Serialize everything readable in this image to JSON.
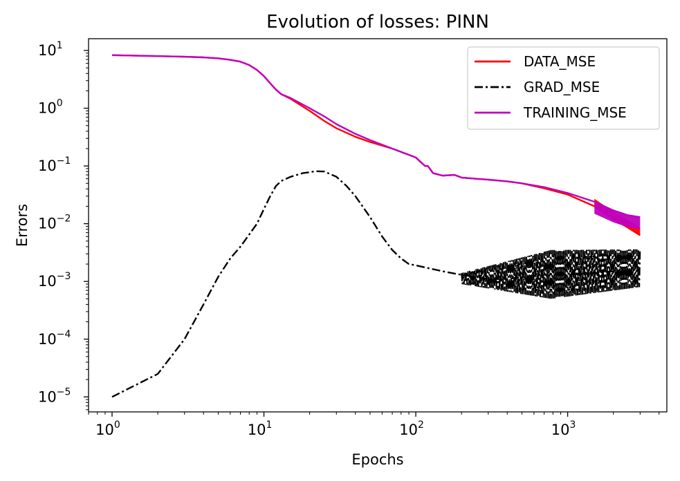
{
  "chart_data": {
    "type": "line",
    "title": "Evolution of losses: PINN",
    "xlabel": "Epochs",
    "ylabel": "Errors",
    "xscale": "log",
    "yscale": "log",
    "xlim": [
      0.7,
      4500
    ],
    "ylim": [
      5.5e-06,
      16
    ],
    "x_ticks": [
      {
        "value": 1,
        "base": "10",
        "exp": "0"
      },
      {
        "value": 10,
        "base": "10",
        "exp": "1"
      },
      {
        "value": 100,
        "base": "10",
        "exp": "2"
      },
      {
        "value": 1000,
        "base": "10",
        "exp": "3"
      }
    ],
    "y_ticks": [
      {
        "value": 10,
        "base": "10",
        "exp": "1"
      },
      {
        "value": 1,
        "base": "10",
        "exp": "0"
      },
      {
        "value": 0.1,
        "base": "10",
        "exp": "−1"
      },
      {
        "value": 0.01,
        "base": "10",
        "exp": "−2"
      },
      {
        "value": 0.001,
        "base": "10",
        "exp": "−3"
      },
      {
        "value": 0.0001,
        "base": "10",
        "exp": "−4"
      },
      {
        "value": 1e-05,
        "base": "10",
        "exp": "−5"
      }
    ],
    "grid": false,
    "legend_position": "top-right",
    "series": [
      {
        "name": "DATA_MSE",
        "color": "#ff0000",
        "style": "solid",
        "points": [
          [
            1,
            8.3
          ],
          [
            2,
            8.0
          ],
          [
            3,
            7.8
          ],
          [
            4,
            7.6
          ],
          [
            5,
            7.3
          ],
          [
            6,
            6.9
          ],
          [
            7,
            6.4
          ],
          [
            8,
            5.6
          ],
          [
            9,
            4.6
          ],
          [
            10,
            3.6
          ],
          [
            11,
            2.7
          ],
          [
            12,
            2.1
          ],
          [
            13,
            1.75
          ],
          [
            15,
            1.45
          ],
          [
            20,
            0.9
          ],
          [
            25,
            0.6
          ],
          [
            30,
            0.45
          ],
          [
            40,
            0.32
          ],
          [
            50,
            0.26
          ],
          [
            70,
            0.2
          ],
          [
            100,
            0.14
          ],
          [
            115,
            0.1
          ],
          [
            120,
            0.1
          ],
          [
            130,
            0.075
          ],
          [
            150,
            0.068
          ],
          [
            180,
            0.07
          ],
          [
            200,
            0.063
          ],
          [
            250,
            0.06
          ],
          [
            300,
            0.058
          ],
          [
            400,
            0.054
          ],
          [
            500,
            0.05
          ],
          [
            700,
            0.041
          ],
          [
            1000,
            0.032
          ],
          [
            1500,
            0.02
          ],
          [
            2000,
            0.012
          ],
          [
            2500,
            0.0085
          ],
          [
            3000,
            0.0063
          ]
        ]
      },
      {
        "name": "GRAD_MSE",
        "color": "#000000",
        "style": "dashdot",
        "points": [
          [
            1,
            1e-05
          ],
          [
            2,
            2.5e-05
          ],
          [
            3,
            0.0001
          ],
          [
            4,
            0.0004
          ],
          [
            5,
            0.0012
          ],
          [
            6,
            0.0025
          ],
          [
            7,
            0.004
          ],
          [
            8,
            0.0065
          ],
          [
            9,
            0.01
          ],
          [
            10,
            0.018
          ],
          [
            11,
            0.03
          ],
          [
            12,
            0.045
          ],
          [
            13,
            0.055
          ],
          [
            15,
            0.065
          ],
          [
            18,
            0.075
          ],
          [
            22,
            0.081
          ],
          [
            25,
            0.08
          ],
          [
            30,
            0.065
          ],
          [
            35,
            0.045
          ],
          [
            40,
            0.03
          ],
          [
            50,
            0.013
          ],
          [
            60,
            0.006
          ],
          [
            70,
            0.0035
          ],
          [
            80,
            0.0025
          ],
          [
            90,
            0.002
          ],
          [
            100,
            0.0019
          ],
          [
            150,
            0.0015
          ],
          [
            200,
            0.0013
          ],
          [
            300,
            0.0011
          ],
          [
            400,
            0.0011
          ],
          [
            500,
            0.0012
          ],
          [
            700,
            0.0013
          ],
          [
            1000,
            0.0013
          ],
          [
            1500,
            0.0014
          ],
          [
            2000,
            0.0015
          ],
          [
            3000,
            0.0016
          ]
        ],
        "oscillation_band": {
          "start": 200,
          "end": 3000,
          "low": [
            0.0009,
            0.0005,
            0.0008
          ],
          "high": [
            0.0014,
            0.0035,
            0.0036
          ]
        }
      },
      {
        "name": "TRAINING_MSE",
        "color": "#bf00bf",
        "style": "solid",
        "points": [
          [
            1,
            8.3
          ],
          [
            2,
            8.0
          ],
          [
            3,
            7.8
          ],
          [
            4,
            7.6
          ],
          [
            5,
            7.3
          ],
          [
            6,
            6.9
          ],
          [
            7,
            6.4
          ],
          [
            8,
            5.6
          ],
          [
            9,
            4.6
          ],
          [
            10,
            3.6
          ],
          [
            11,
            2.7
          ],
          [
            12,
            2.1
          ],
          [
            13,
            1.75
          ],
          [
            15,
            1.5
          ],
          [
            20,
            1.0
          ],
          [
            25,
            0.72
          ],
          [
            30,
            0.53
          ],
          [
            40,
            0.36
          ],
          [
            50,
            0.28
          ],
          [
            70,
            0.2
          ],
          [
            100,
            0.14
          ],
          [
            115,
            0.1
          ],
          [
            120,
            0.1
          ],
          [
            130,
            0.075
          ],
          [
            150,
            0.068
          ],
          [
            180,
            0.07
          ],
          [
            200,
            0.063
          ],
          [
            250,
            0.06
          ],
          [
            300,
            0.058
          ],
          [
            400,
            0.054
          ],
          [
            500,
            0.05
          ],
          [
            700,
            0.043
          ],
          [
            1000,
            0.034
          ],
          [
            1500,
            0.024
          ],
          [
            2000,
            0.017
          ],
          [
            2500,
            0.014
          ],
          [
            3000,
            0.013
          ]
        ]
      }
    ]
  }
}
